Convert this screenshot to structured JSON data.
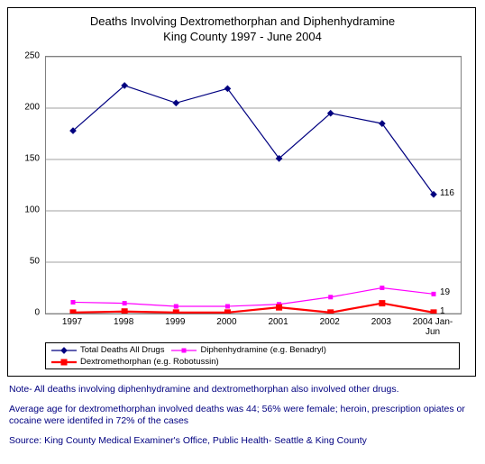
{
  "chart": {
    "title_line1": "Deaths Involving Dextromethorphan and Diphenhydramine",
    "title_line2": "King County  1997 - June 2004",
    "title_fontsize": 13,
    "type": "line",
    "background_color": "#ffffff",
    "border_color": "#000000",
    "plot_border_color": "#808080",
    "grid_color": "#808080",
    "categories": [
      "1997",
      "1998",
      "1999",
      "2000",
      "2001",
      "2002",
      "2003",
      "2004 Jan-Jun"
    ],
    "ylim": [
      0,
      250
    ],
    "ytick_step": 50,
    "y_ticks": [
      0,
      50,
      100,
      150,
      200,
      250
    ],
    "label_fontsize": 10,
    "series": [
      {
        "name": "Total Deaths All Drugs",
        "color": "#000080",
        "marker": "diamond",
        "marker_size": 5,
        "line_width": 1.2,
        "values": [
          178,
          222,
          205,
          219,
          151,
          195,
          185,
          116
        ]
      },
      {
        "name": "Diphenhydramine (e.g. Benadryl)",
        "color": "#ff00ff",
        "marker": "square",
        "marker_size": 5,
        "line_width": 1.2,
        "values": [
          11,
          10,
          7,
          7,
          9,
          16,
          25,
          19
        ]
      },
      {
        "name": "Dextromethorphan (e.g. Robotussin)",
        "color": "#ff0000",
        "marker": "square",
        "marker_size": 7,
        "line_width": 2.2,
        "values": [
          1,
          2,
          1,
          1,
          6,
          1,
          10,
          1
        ]
      }
    ],
    "end_labels": [
      {
        "text": "116",
        "series": 0
      },
      {
        "text": "19",
        "series": 1
      },
      {
        "text": "1",
        "series": 2
      }
    ]
  },
  "notes": {
    "color": "#000080",
    "fontsize": 10.5,
    "line1": "Note- All deaths involving diphenhydramine and dextromethorphan also involved other drugs.",
    "line2": "Average age for dextromethorphan involved deaths was 44; 56% were female; heroin, prescription opiates or cocaine were identifed in 72% of the cases",
    "line3": "Source: King County Medical Examiner's Office, Public Health- Seattle & King County"
  }
}
